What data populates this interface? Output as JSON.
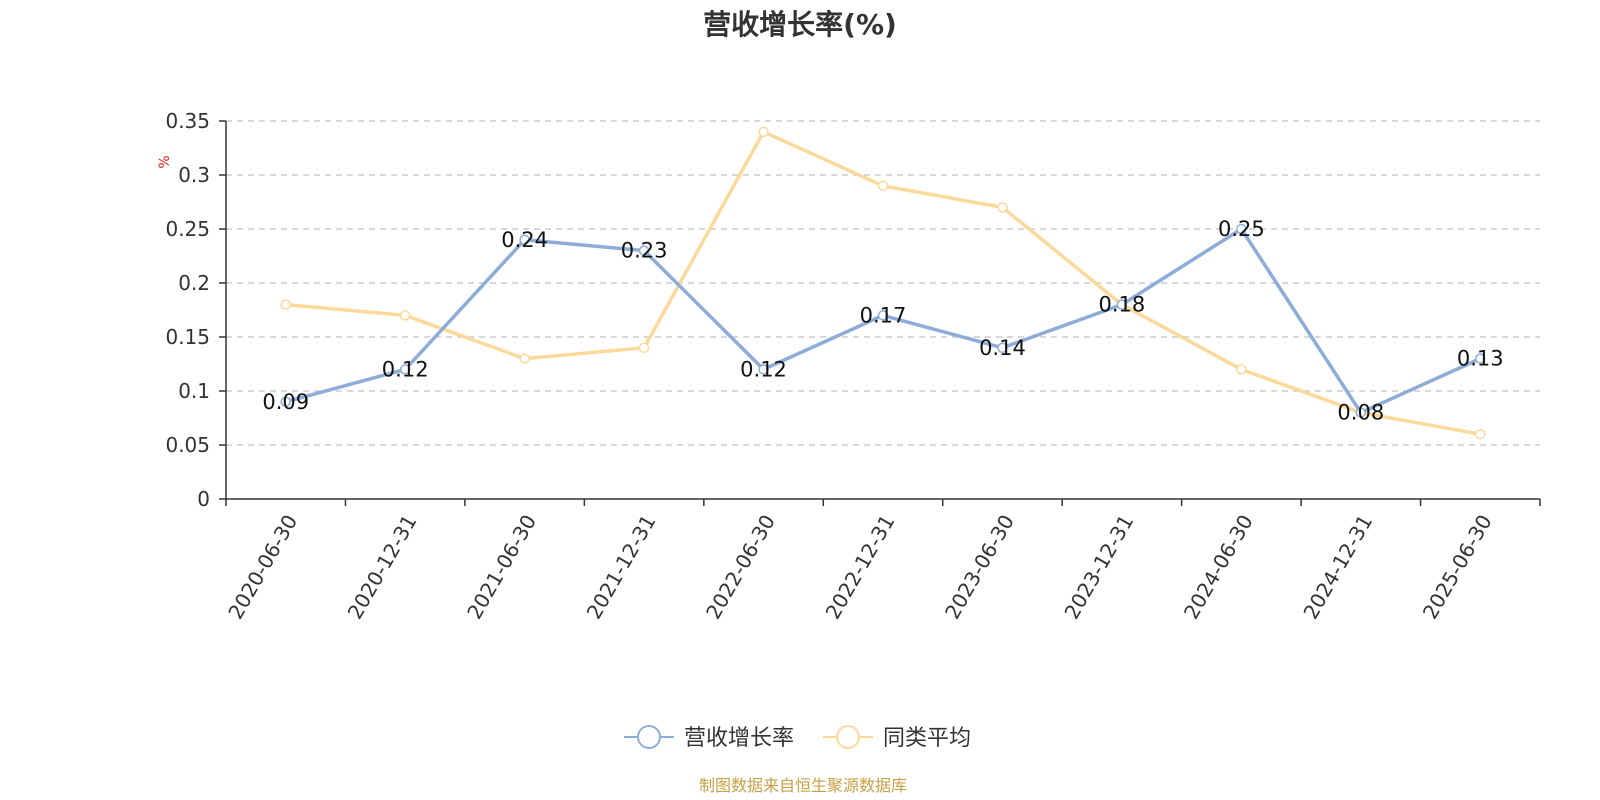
{
  "chart_data": {
    "type": "line",
    "title": "营收增长率(%)",
    "ylabel": "%",
    "ylim": [
      0,
      0.35
    ],
    "yticks": [
      0,
      0.05,
      0.1,
      0.15,
      0.2,
      0.25,
      0.3,
      0.35
    ],
    "ytick_labels": [
      "0",
      "0.05",
      "0.1",
      "0.15",
      "0.2",
      "0.25",
      "0.3",
      "0.35"
    ],
    "categories": [
      "2020-06-30",
      "2020-12-31",
      "2021-06-30",
      "2021-12-31",
      "2022-06-30",
      "2022-12-31",
      "2023-06-30",
      "2023-12-31",
      "2024-06-30",
      "2024-12-31",
      "2025-06-30"
    ],
    "series": [
      {
        "name": "营收增长率",
        "color": "#8EACD8",
        "values": [
          0.09,
          0.12,
          0.24,
          0.23,
          0.12,
          0.17,
          0.14,
          0.18,
          0.25,
          0.08,
          0.13
        ],
        "labels": [
          "0.09",
          "0.12",
          "0.24",
          "0.23",
          "0.12",
          "0.17",
          "0.14",
          "0.18",
          "0.25",
          "0.08",
          "0.13"
        ]
      },
      {
        "name": "同类平均",
        "color": "#FBD99A",
        "values": [
          0.18,
          0.17,
          0.13,
          0.14,
          0.34,
          0.29,
          0.27,
          0.18,
          0.12,
          0.08,
          0.06
        ]
      }
    ],
    "grid": true,
    "legend_position": "bottom-center",
    "unit_color": "#E02020"
  },
  "footer": {
    "source": "制图数据来自恒生聚源数据库",
    "color": "#C8A044"
  }
}
